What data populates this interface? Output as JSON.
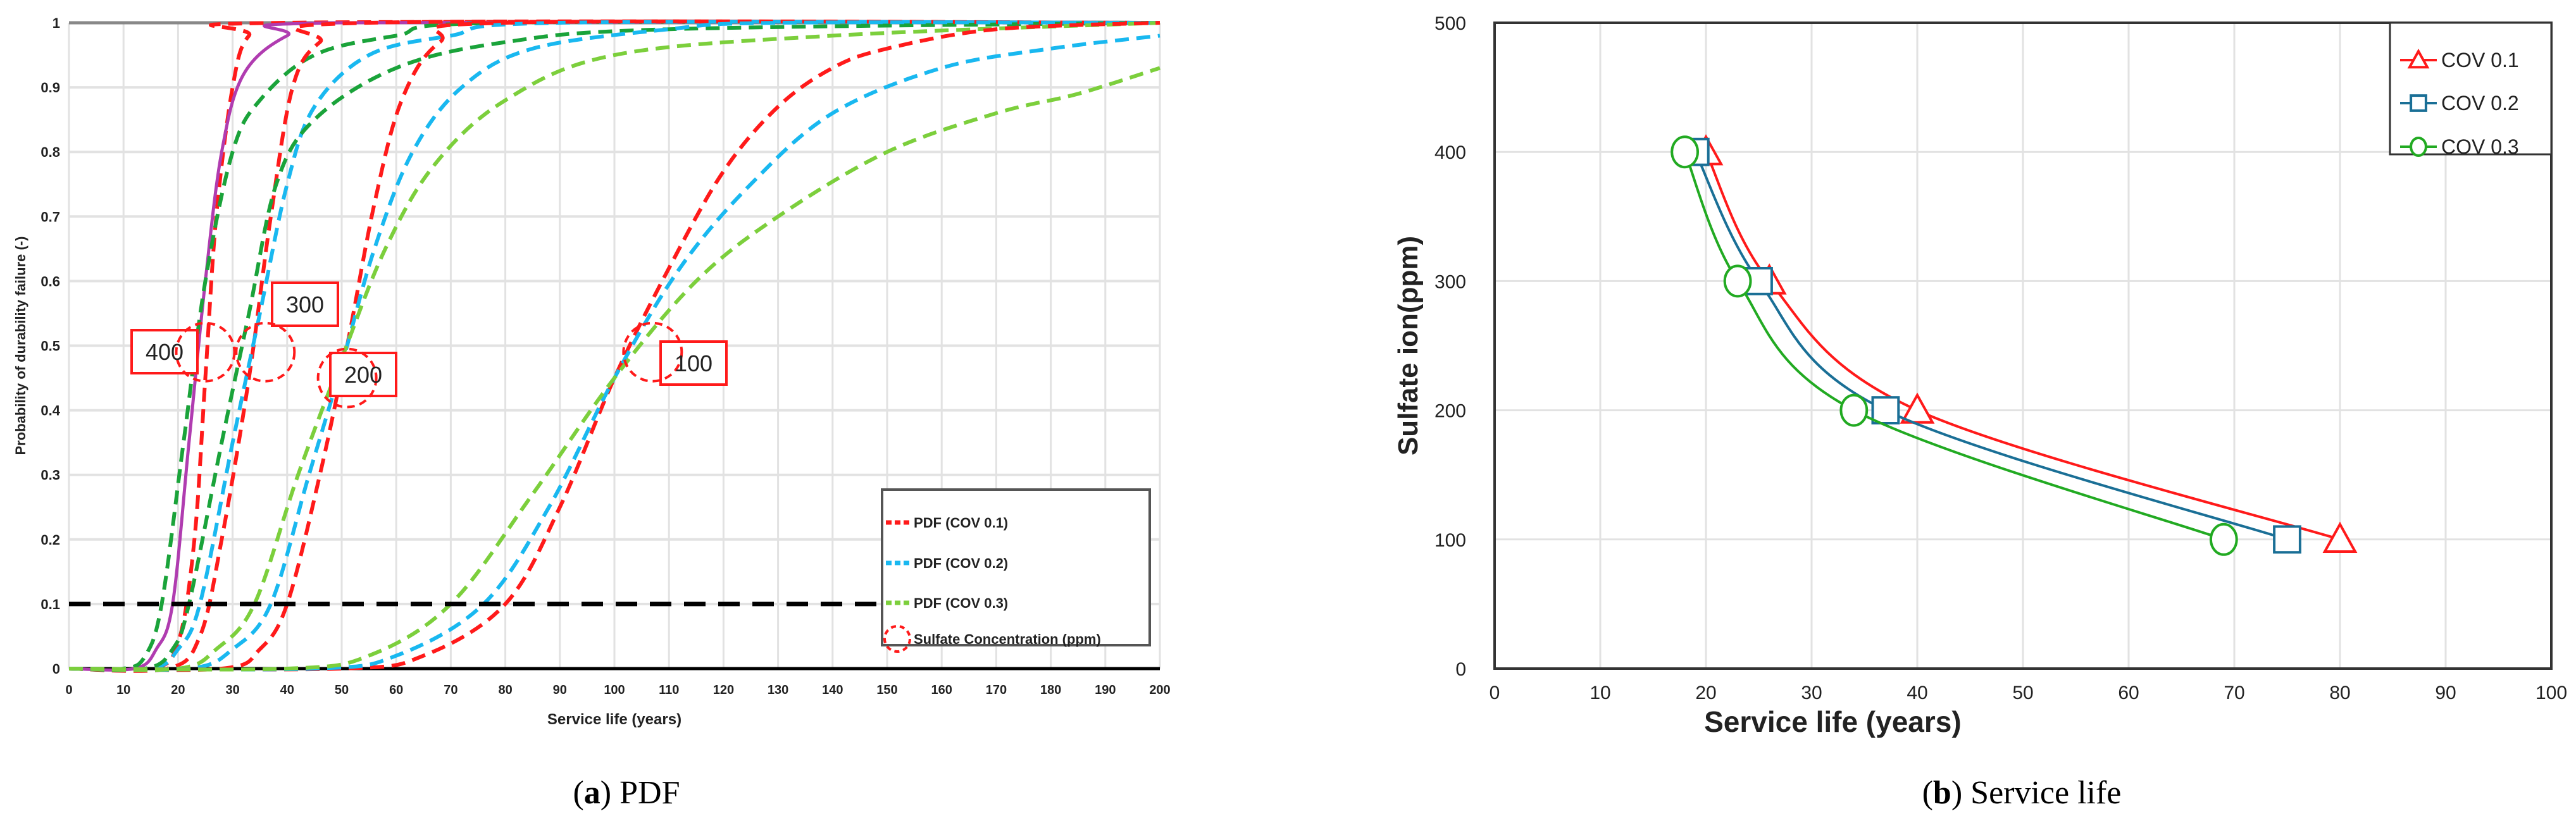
{
  "chart_data": [
    {
      "type": "line",
      "caption_letter": "a",
      "caption_text": "PDF",
      "title": "",
      "xlabel": "Service life (years)",
      "ylabel": "Probability of durability failure (-)",
      "xlim": [
        0,
        200
      ],
      "ylim": [
        0,
        1
      ],
      "xticks": [
        0,
        10,
        20,
        30,
        40,
        50,
        60,
        70,
        80,
        90,
        100,
        110,
        120,
        130,
        140,
        150,
        160,
        170,
        180,
        190,
        200
      ],
      "yticks": [
        "0",
        "0.1",
        "0.2",
        "0.3",
        "0.4",
        "0.5",
        "0.6",
        "0.7",
        "0.8",
        "0.9",
        "1"
      ],
      "grid": true,
      "threshold": 0.1,
      "legend_position": "bottom-right",
      "legend": [
        {
          "label": "PDF (COV 0.1)",
          "color": "#ff1a1a",
          "style": "dashed"
        },
        {
          "label": "PDF (COV 0.2)",
          "color": "#19b8f0",
          "style": "dashed"
        },
        {
          "label": "PDF (COV 0.3)",
          "color": "#7ccf3c",
          "style": "dashed"
        },
        {
          "label": "Sulfate Concentration (ppm)",
          "color": "#ff1a1a",
          "style": "dashed-circle"
        }
      ],
      "annotations": [
        {
          "label": "400",
          "x": 25,
          "y": 0.49
        },
        {
          "label": "300",
          "x": 36,
          "y": 0.49
        },
        {
          "label": "200",
          "x": 51,
          "y": 0.45
        },
        {
          "label": "100",
          "x": 107,
          "y": 0.49
        }
      ],
      "series": [
        {
          "name": "400 ppm COV 0.1",
          "color": "#ff1a1a",
          "dash": true,
          "points": [
            [
              0,
              0
            ],
            [
              15,
              0
            ],
            [
              20,
              0.04
            ],
            [
              23,
              0.2
            ],
            [
              25,
              0.45
            ],
            [
              27,
              0.7
            ],
            [
              30,
              0.9
            ],
            [
              33,
              0.98
            ],
            [
              40,
              1
            ],
            [
              200,
              1
            ]
          ]
        },
        {
          "name": "400 ppm COV 0.2",
          "color": "#b03cb0",
          "dash": false,
          "points": [
            [
              0,
              0
            ],
            [
              12,
              0
            ],
            [
              16,
              0.03
            ],
            [
              19,
              0.1
            ],
            [
              22,
              0.35
            ],
            [
              25,
              0.6
            ],
            [
              28,
              0.8
            ],
            [
              32,
              0.92
            ],
            [
              40,
              0.98
            ],
            [
              50,
              1
            ],
            [
              200,
              1
            ]
          ]
        },
        {
          "name": "400 ppm COV 0.3",
          "color": "#1aa33a",
          "dash": true,
          "points": [
            [
              0,
              0
            ],
            [
              10,
              0
            ],
            [
              14,
              0.02
            ],
            [
              17,
              0.1
            ],
            [
              21,
              0.35
            ],
            [
              25,
              0.6
            ],
            [
              30,
              0.8
            ],
            [
              35,
              0.88
            ],
            [
              45,
              0.95
            ],
            [
              60,
              0.98
            ],
            [
              80,
              1
            ],
            [
              200,
              1
            ]
          ]
        },
        {
          "name": "300 ppm COV 0.1",
          "color": "#ff1a1a",
          "dash": true,
          "points": [
            [
              0,
              0
            ],
            [
              18,
              0
            ],
            [
              24,
              0.05
            ],
            [
              28,
              0.2
            ],
            [
              33,
              0.45
            ],
            [
              37,
              0.7
            ],
            [
              41,
              0.9
            ],
            [
              46,
              0.97
            ],
            [
              55,
              1
            ],
            [
              200,
              1
            ]
          ]
        },
        {
          "name": "300 ppm COV 0.2",
          "color": "#19b8f0",
          "dash": true,
          "points": [
            [
              0,
              0
            ],
            [
              15,
              0
            ],
            [
              20,
              0.03
            ],
            [
              24,
              0.1
            ],
            [
              30,
              0.35
            ],
            [
              35,
              0.55
            ],
            [
              40,
              0.75
            ],
            [
              45,
              0.87
            ],
            [
              55,
              0.95
            ],
            [
              70,
              0.98
            ],
            [
              90,
              1
            ],
            [
              200,
              1
            ]
          ]
        },
        {
          "name": "300 ppm COV 0.3",
          "color": "#1aa33a",
          "dash": true,
          "points": [
            [
              0,
              0
            ],
            [
              14,
              0
            ],
            [
              19,
              0.03
            ],
            [
              22,
              0.1
            ],
            [
              28,
              0.35
            ],
            [
              33,
              0.55
            ],
            [
              38,
              0.75
            ],
            [
              45,
              0.85
            ],
            [
              60,
              0.93
            ],
            [
              80,
              0.97
            ],
            [
              110,
              0.99
            ],
            [
              200,
              1
            ]
          ]
        },
        {
          "name": "200 ppm COV 0.1",
          "color": "#ff1a1a",
          "dash": true,
          "points": [
            [
              0,
              0
            ],
            [
              28,
              0
            ],
            [
              35,
              0.03
            ],
            [
              40,
              0.1
            ],
            [
              46,
              0.3
            ],
            [
              51,
              0.5
            ],
            [
              56,
              0.72
            ],
            [
              61,
              0.88
            ],
            [
              68,
              0.97
            ],
            [
              80,
              1
            ],
            [
              200,
              1
            ]
          ]
        },
        {
          "name": "200 ppm COV 0.2",
          "color": "#19b8f0",
          "dash": true,
          "points": [
            [
              0,
              0
            ],
            [
              22,
              0
            ],
            [
              30,
              0.03
            ],
            [
              37,
              0.1
            ],
            [
              44,
              0.3
            ],
            [
              50,
              0.47
            ],
            [
              56,
              0.65
            ],
            [
              63,
              0.8
            ],
            [
              72,
              0.9
            ],
            [
              85,
              0.96
            ],
            [
              110,
              0.99
            ],
            [
              130,
              1
            ],
            [
              200,
              1
            ]
          ]
        },
        {
          "name": "200 ppm COV 0.3",
          "color": "#7ccf3c",
          "dash": true,
          "points": [
            [
              0,
              0
            ],
            [
              20,
              0
            ],
            [
              27,
              0.03
            ],
            [
              34,
              0.1
            ],
            [
              42,
              0.3
            ],
            [
              50,
              0.48
            ],
            [
              58,
              0.65
            ],
            [
              67,
              0.78
            ],
            [
              80,
              0.88
            ],
            [
              100,
              0.95
            ],
            [
              140,
              0.98
            ],
            [
              200,
              1
            ]
          ]
        },
        {
          "name": "100 ppm COV 0.1",
          "color": "#ff1a1a",
          "dash": true,
          "points": [
            [
              0,
              0
            ],
            [
              50,
              0
            ],
            [
              65,
              0.02
            ],
            [
              80,
              0.1
            ],
            [
              90,
              0.25
            ],
            [
              100,
              0.45
            ],
            [
              110,
              0.62
            ],
            [
              120,
              0.77
            ],
            [
              130,
              0.87
            ],
            [
              140,
              0.93
            ],
            [
              150,
              0.96
            ],
            [
              170,
              0.99
            ],
            [
              200,
              1
            ]
          ]
        },
        {
          "name": "100 ppm COV 0.2",
          "color": "#19b8f0",
          "dash": true,
          "points": [
            [
              0,
              0
            ],
            [
              45,
              0
            ],
            [
              60,
              0.02
            ],
            [
              76,
              0.1
            ],
            [
              88,
              0.25
            ],
            [
              100,
              0.45
            ],
            [
              112,
              0.62
            ],
            [
              125,
              0.75
            ],
            [
              140,
              0.86
            ],
            [
              160,
              0.93
            ],
            [
              180,
              0.96
            ],
            [
              200,
              0.98
            ]
          ]
        },
        {
          "name": "100 ppm COV 0.3",
          "color": "#7ccf3c",
          "dash": true,
          "points": [
            [
              0,
              0
            ],
            [
              40,
              0
            ],
            [
              55,
              0.02
            ],
            [
              70,
              0.1
            ],
            [
              85,
              0.27
            ],
            [
              100,
              0.45
            ],
            [
              115,
              0.6
            ],
            [
              130,
              0.7
            ],
            [
              150,
              0.8
            ],
            [
              170,
              0.86
            ],
            [
              185,
              0.89
            ],
            [
              200,
              0.93
            ]
          ]
        }
      ]
    },
    {
      "type": "line",
      "caption_letter": "b",
      "caption_text": "Service life",
      "title": "",
      "xlabel": "Service life (years)",
      "ylabel": "Sulfate ion(ppm)",
      "xlim": [
        0,
        100
      ],
      "ylim": [
        0,
        500
      ],
      "xticks": [
        0,
        10,
        20,
        30,
        40,
        50,
        60,
        70,
        80,
        90,
        100
      ],
      "yticks": [
        0,
        100,
        200,
        300,
        400,
        500
      ],
      "grid": true,
      "legend_position": "top-right",
      "series": [
        {
          "name": "COV 0.1",
          "color": "#ff1a1a",
          "marker": "triangle",
          "x": [
            20,
            26,
            40,
            80
          ],
          "y": [
            400,
            300,
            200,
            100
          ]
        },
        {
          "name": "COV 0.2",
          "color": "#1a6f96",
          "marker": "square",
          "x": [
            19,
            25,
            37,
            75
          ],
          "y": [
            400,
            300,
            200,
            100
          ]
        },
        {
          "name": "COV 0.3",
          "color": "#22aa22",
          "marker": "circle",
          "x": [
            18,
            23,
            34,
            69
          ],
          "y": [
            400,
            300,
            200,
            100
          ]
        }
      ]
    }
  ]
}
